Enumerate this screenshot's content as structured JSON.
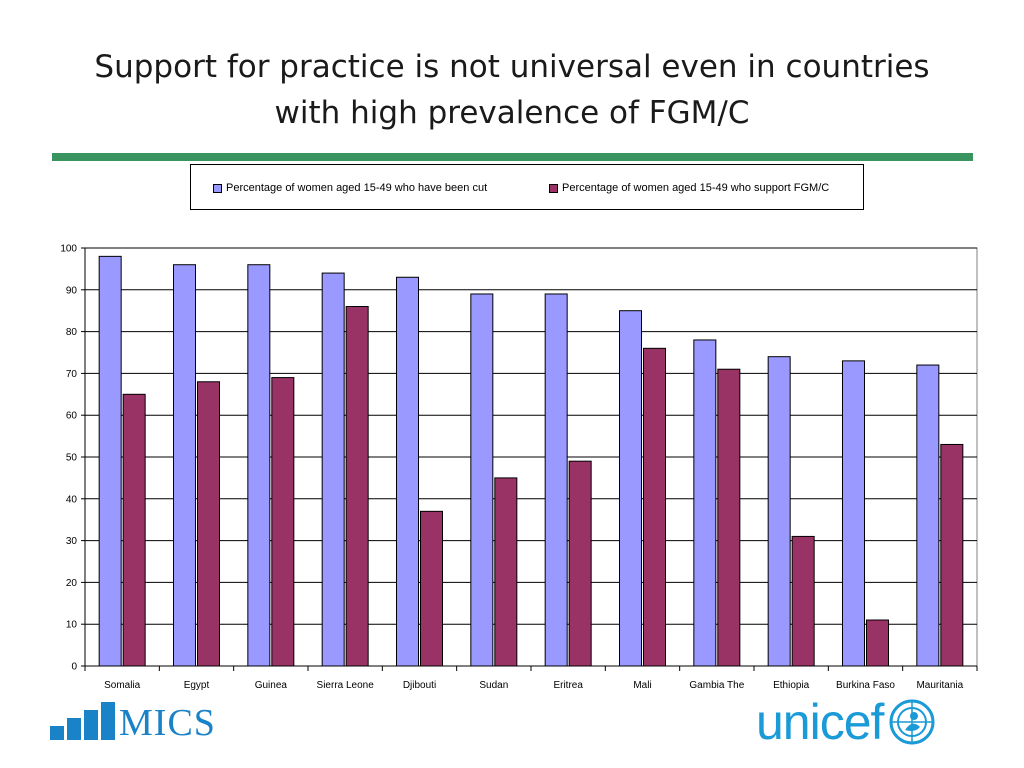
{
  "slide": {
    "title_line1": "Support for practice is not universal even in countries",
    "title_line2": "with high prevalence of FGM/C"
  },
  "colors": {
    "series_cut": "#9999ff",
    "series_support": "#993366",
    "rule": "#3a9460",
    "logo_blue": "#1a82c7",
    "unicef_blue": "#1a9ad6"
  },
  "logos": {
    "mics": "MICS",
    "unicef": "unicef"
  },
  "chart_data": {
    "type": "bar",
    "categories": [
      "Somalia",
      "Egypt",
      "Guinea",
      "Sierra Leone",
      "Djibouti",
      "Sudan",
      "Eritrea",
      "Mali",
      "Gambia The",
      "Ethiopia",
      "Burkina Faso",
      "Mauritania"
    ],
    "series": [
      {
        "name": "Percentage of women aged 15-49 who have been cut",
        "values": [
          98,
          96,
          96,
          94,
          93,
          89,
          89,
          85,
          78,
          74,
          73,
          72
        ]
      },
      {
        "name": "Percentage of women aged 15-49 who support FGM/C",
        "values": [
          65,
          68,
          69,
          86,
          37,
          45,
          49,
          76,
          71,
          31,
          11,
          53
        ]
      }
    ],
    "ylim": [
      0,
      100
    ],
    "yticks": [
      0,
      10,
      20,
      30,
      40,
      50,
      60,
      70,
      80,
      90,
      100
    ],
    "grid": true,
    "legend": "top"
  }
}
